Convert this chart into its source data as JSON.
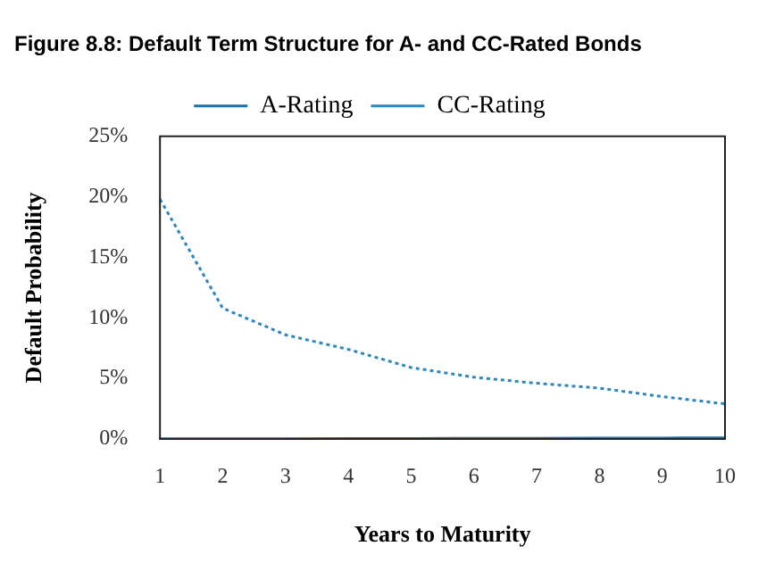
{
  "chart_data": {
    "type": "line",
    "title": "Figure 8.8: Default Term Structure for A- and CC-Rated Bonds",
    "xlabel": "Years to Maturity",
    "ylabel": "Default Probability",
    "categories": [
      "1",
      "2",
      "3",
      "4",
      "5",
      "6",
      "7",
      "8",
      "9",
      "10"
    ],
    "series": [
      {
        "name": "A-Rating",
        "color": "#1f6fa8",
        "line_style": "solid",
        "values": [
          0.01,
          0.02,
          0.02,
          0.03,
          0.04,
          0.05,
          0.06,
          0.07,
          0.08,
          0.1
        ]
      },
      {
        "name": "CC-Rating",
        "color": "#2e86c1",
        "line_style": "dotted",
        "values": [
          19.8,
          10.8,
          8.6,
          7.4,
          5.9,
          5.1,
          4.6,
          4.2,
          3.5,
          2.9
        ]
      }
    ],
    "ylim": [
      0,
      25
    ],
    "yticks": [
      {
        "value": 0,
        "label": "0%"
      },
      {
        "value": 5,
        "label": "5%"
      },
      {
        "value": 10,
        "label": "10%"
      },
      {
        "value": 15,
        "label": "15%"
      },
      {
        "value": 20,
        "label": "20%"
      },
      {
        "value": 25,
        "label": "25%"
      }
    ],
    "grid": false,
    "legend": "top",
    "marker": "none"
  }
}
